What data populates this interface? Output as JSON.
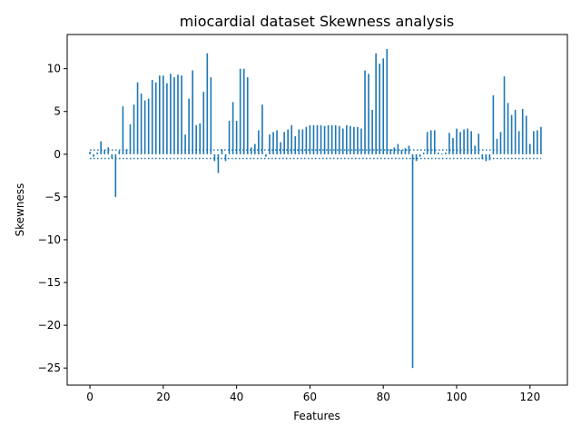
{
  "chart_data": {
    "type": "bar",
    "title": "miocardial dataset Skewness analysis",
    "xlabel": "Features",
    "ylabel": "Skewness",
    "xlim": [
      -6.2,
      130.2
    ],
    "ylim": [
      -27,
      14
    ],
    "xticks": [
      0,
      20,
      40,
      60,
      80,
      100,
      120
    ],
    "yticks": [
      -25,
      -20,
      -15,
      -10,
      -5,
      0,
      5,
      10
    ],
    "bar_color": "#1f77b4",
    "threshold_lines": [
      0.5,
      -0.5
    ],
    "threshold_style": "dotted",
    "x": [
      0,
      1,
      2,
      3,
      4,
      5,
      6,
      7,
      8,
      9,
      10,
      11,
      12,
      13,
      14,
      15,
      16,
      17,
      18,
      19,
      20,
      21,
      22,
      23,
      24,
      25,
      26,
      27,
      28,
      29,
      30,
      31,
      32,
      33,
      34,
      35,
      36,
      37,
      38,
      39,
      40,
      41,
      42,
      43,
      44,
      45,
      46,
      47,
      48,
      49,
      50,
      51,
      52,
      53,
      54,
      55,
      56,
      57,
      58,
      59,
      60,
      61,
      62,
      63,
      64,
      65,
      66,
      67,
      68,
      69,
      70,
      71,
      72,
      73,
      74,
      75,
      76,
      77,
      78,
      79,
      80,
      81,
      82,
      83,
      84,
      85,
      86,
      87,
      88,
      89,
      90,
      91,
      92,
      93,
      94,
      95,
      96,
      97,
      98,
      99,
      100,
      101,
      102,
      103,
      104,
      105,
      106,
      107,
      108,
      109,
      110,
      111,
      112,
      113,
      114,
      115,
      116,
      117,
      118,
      119,
      120,
      121,
      122,
      123
    ],
    "values": [
      0.3,
      -0.3,
      0.2,
      1.5,
      0.5,
      0.8,
      -0.5,
      -5.0,
      0.4,
      5.6,
      0.6,
      3.5,
      5.8,
      8.4,
      7.1,
      6.3,
      6.5,
      8.7,
      8.4,
      9.2,
      9.2,
      8.3,
      9.4,
      9.0,
      9.3,
      9.2,
      2.3,
      6.5,
      9.8,
      3.4,
      3.6,
      7.3,
      11.8,
      9.0,
      -0.8,
      -2.2,
      0.6,
      -0.8,
      3.9,
      6.1,
      3.9,
      10.0,
      10.0,
      9.0,
      0.8,
      1.2,
      2.8,
      5.8,
      -0.3,
      2.3,
      2.6,
      2.8,
      1.4,
      2.6,
      2.9,
      3.4,
      2.1,
      2.9,
      2.9,
      3.2,
      3.4,
      3.4,
      3.4,
      3.4,
      3.3,
      3.4,
      3.4,
      3.4,
      3.3,
      3.0,
      3.4,
      3.3,
      3.2,
      3.2,
      3.0,
      9.8,
      9.4,
      5.2,
      11.8,
      10.6,
      11.2,
      12.3,
      0.6,
      0.8,
      1.2,
      0.5,
      0.7,
      1.0,
      -25.0,
      -0.8,
      -0.3,
      0.2,
      2.6,
      2.8,
      2.8,
      0.2,
      0.1,
      0.2,
      2.5,
      1.9,
      3.0,
      2.6,
      2.9,
      3.0,
      2.7,
      1.0,
      2.4,
      -0.6,
      -0.8,
      -0.7,
      6.9,
      1.8,
      2.6,
      9.1,
      6.0,
      4.6,
      5.2,
      2.7,
      5.3,
      4.5,
      1.2,
      2.7,
      2.8,
      3.2
    ]
  }
}
